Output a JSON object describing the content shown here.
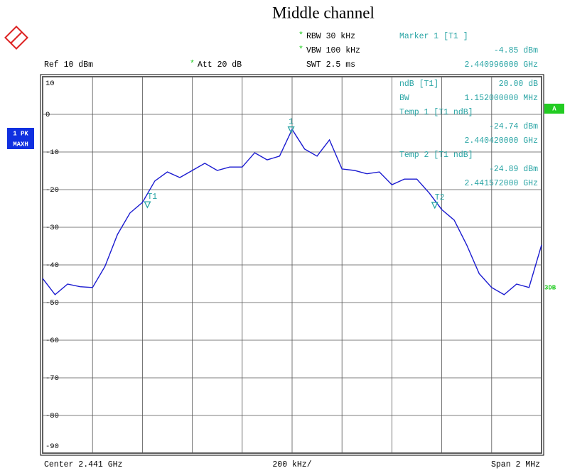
{
  "header": {
    "rbw": "RBW 30 kHz",
    "vbw": "VBW 100 kHz",
    "swt": "SWT 2.5 ms",
    "ref": "Ref 10 dBm",
    "att": "Att 20 dB",
    "star": "*",
    "marker_title": "Marker 1 [T1 ]",
    "marker_level": "-4.85 dBm",
    "marker_freq": "2.440996000 GHz"
  },
  "readout": [
    "ndB [T1]",
    "20.00 dB",
    "BW",
    "1.152000000 MHz",
    "Temp 1 [T1 ndB]",
    "-24.74 dBm",
    "2.440420000 GHz",
    "Temp 2 [T1 ndB]",
    "-24.89 dBm",
    "2.441572000 GHz"
  ],
  "side": {
    "trace": "1 PK",
    "mode": "MAXH",
    "a": "A",
    "db": "3DB"
  },
  "footer": {
    "center": "Center 2.441 GHz",
    "div": "200 kHz/",
    "span": "Span 2 MHz"
  },
  "chart_data": {
    "type": "line",
    "title": "Middle channel",
    "color": "#1a1ad0",
    "grid": true,
    "x": [
      2.44,
      2.44005,
      2.4401,
      2.44015,
      2.4402,
      2.44025,
      2.4403,
      2.44035,
      2.4404,
      2.44045,
      2.4405,
      2.44055,
      2.4406,
      2.44065,
      2.4407,
      2.44075,
      2.4408,
      2.44085,
      2.4409,
      2.44095,
      2.441,
      2.44105,
      2.4411,
      2.44115,
      2.4412,
      2.44125,
      2.4413,
      2.44135,
      2.4414,
      2.44145,
      2.4415,
      2.44155,
      2.4416,
      2.44165,
      2.4417,
      2.44175,
      2.4418,
      2.44185,
      2.4419,
      2.44195,
      2.442
    ],
    "values": [
      -43.6,
      -47.9,
      -45.1,
      -45.8,
      -46,
      -40.4,
      -31.9,
      -26.2,
      -23.4,
      -17.7,
      -15.3,
      -16.8,
      -14.9,
      -13,
      -14.9,
      -14,
      -14,
      -10.2,
      -12.1,
      -11.1,
      -4,
      -9.2,
      -11.1,
      -6.8,
      -14.5,
      -14.9,
      -15.8,
      -15.3,
      -18.7,
      -17.2,
      -17.2,
      -20.9,
      -25.3,
      -28.1,
      -34.7,
      -42.3,
      -46,
      -47.9,
      -45.1,
      -46,
      -34.7
    ],
    "xlim": [
      2.44,
      2.442
    ],
    "xticks": [
      2.44,
      2.4402,
      2.4404,
      2.4406,
      2.4408,
      2.441,
      2.4412,
      2.4414,
      2.4416,
      2.4418,
      2.442
    ],
    "ylim": [
      -90,
      10
    ],
    "yticks": [
      10,
      0,
      -10,
      -20,
      -30,
      -40,
      -50,
      -60,
      -70,
      -80,
      -90
    ],
    "markers": [
      {
        "label": "1",
        "x": 2.440996,
        "y": -4.85
      },
      {
        "label": "T1",
        "x": 2.44042,
        "y": -24.74
      },
      {
        "label": "T2",
        "x": 2.441572,
        "y": -24.89
      }
    ],
    "marker_color": "#2aa5a5"
  }
}
